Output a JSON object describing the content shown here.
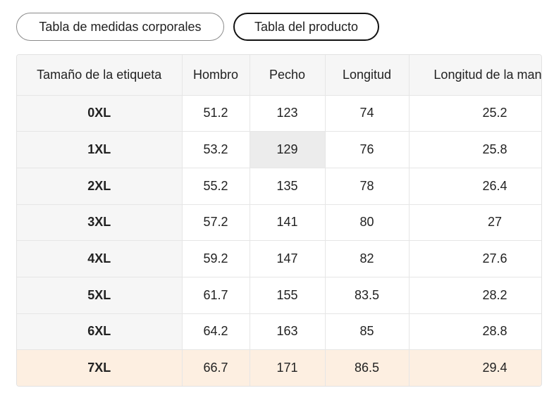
{
  "tabs": [
    {
      "label": "Tabla de medidas corporales",
      "active": false
    },
    {
      "label": "Tabla del producto",
      "active": true
    }
  ],
  "table": {
    "headers": [
      "Tamaño de la etiqueta",
      "Hombro",
      "Pecho",
      "Longitud",
      "Longitud de la manga"
    ],
    "rows": [
      {
        "size": "0XL",
        "hombro": "51.2",
        "pecho": "123",
        "longitud": "74",
        "manga": "25.2"
      },
      {
        "size": "1XL",
        "hombro": "53.2",
        "pecho": "129",
        "longitud": "76",
        "manga": "25.8"
      },
      {
        "size": "2XL",
        "hombro": "55.2",
        "pecho": "135",
        "longitud": "78",
        "manga": "26.4"
      },
      {
        "size": "3XL",
        "hombro": "57.2",
        "pecho": "141",
        "longitud": "80",
        "manga": "27"
      },
      {
        "size": "4XL",
        "hombro": "59.2",
        "pecho": "147",
        "longitud": "82",
        "manga": "27.6"
      },
      {
        "size": "5XL",
        "hombro": "61.7",
        "pecho": "155",
        "longitud": "83.5",
        "manga": "28.2"
      },
      {
        "size": "6XL",
        "hombro": "64.2",
        "pecho": "163",
        "longitud": "85",
        "manga": "28.8"
      },
      {
        "size": "7XL",
        "hombro": "66.7",
        "pecho": "171",
        "longitud": "86.5",
        "manga": "29.4"
      }
    ]
  },
  "colors": {
    "header_bg": "#f6f6f6",
    "highlight_row_bg": "#fdefe1",
    "hover_cell_bg": "#ececec",
    "border": "#e6e6e6"
  }
}
